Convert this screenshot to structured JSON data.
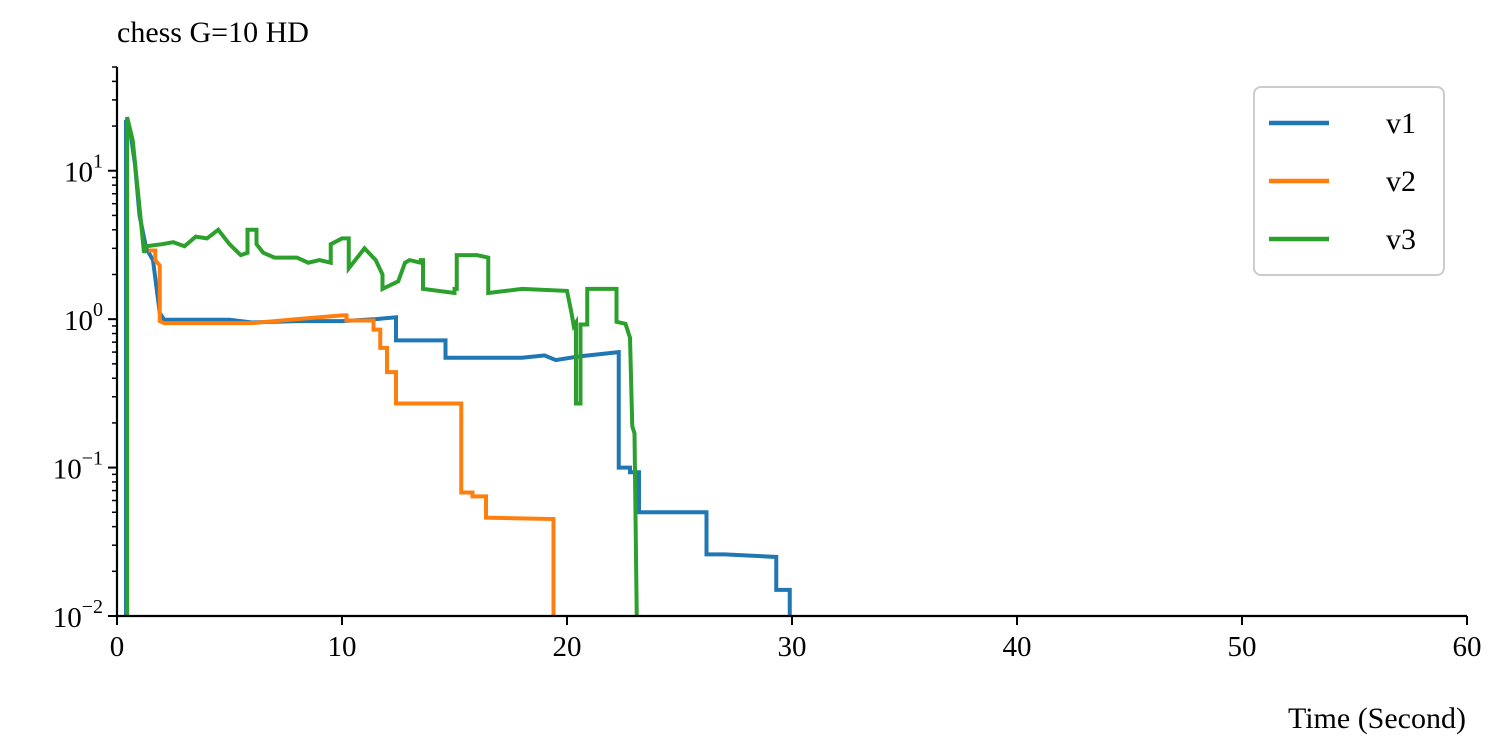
{
  "chart_data": {
    "type": "line",
    "title": "chess G=10 HD",
    "xlabel": "Time (Second)",
    "ylabel": "",
    "xlim": [
      0,
      60
    ],
    "ylim": [
      0.01,
      50
    ],
    "yscale": "log",
    "xticks": [
      0,
      10,
      20,
      30,
      40,
      50,
      60
    ],
    "xtick_labels": [
      "0",
      "10",
      "20",
      "30",
      "40",
      "50",
      "60"
    ],
    "yticks": [
      0.01,
      0.1,
      1,
      10
    ],
    "ytick_labels": [
      {
        "base": "10",
        "exp": "−2"
      },
      {
        "base": "10",
        "exp": "−1"
      },
      {
        "base": "10",
        "exp": "0"
      },
      {
        "base": "10",
        "exp": "1"
      }
    ],
    "legend_position": "top-right",
    "grid": false,
    "series": [
      {
        "name": "v1",
        "color": "#1f77b4",
        "step": true,
        "points": [
          [
            0.4,
            0.01
          ],
          [
            0.4,
            22
          ],
          [
            0.6,
            18
          ],
          [
            0.8,
            11
          ],
          [
            1.0,
            5
          ],
          [
            1.3,
            3.0
          ],
          [
            1.6,
            2.5
          ],
          [
            1.9,
            1.1
          ],
          [
            2.1,
            0.99
          ],
          [
            5.0,
            0.99
          ],
          [
            6.0,
            0.95
          ],
          [
            8.0,
            0.97
          ],
          [
            10.0,
            0.97
          ],
          [
            11.5,
            1.0
          ],
          [
            12.4,
            1.03
          ],
          [
            12.4,
            0.72
          ],
          [
            14.6,
            0.72
          ],
          [
            14.6,
            0.55
          ],
          [
            18.0,
            0.55
          ],
          [
            19.0,
            0.57
          ],
          [
            19.5,
            0.53
          ],
          [
            20.5,
            0.56
          ],
          [
            22.3,
            0.6
          ],
          [
            22.3,
            0.1
          ],
          [
            22.8,
            0.1
          ],
          [
            22.8,
            0.093
          ],
          [
            23.2,
            0.093
          ],
          [
            23.2,
            0.05
          ],
          [
            26.2,
            0.05
          ],
          [
            26.2,
            0.026
          ],
          [
            27.0,
            0.026
          ],
          [
            29.3,
            0.025
          ],
          [
            29.3,
            0.015
          ],
          [
            29.9,
            0.015
          ],
          [
            29.9,
            0.01
          ]
        ]
      },
      {
        "name": "v2",
        "color": "#ff7f0e",
        "step": true,
        "points": [
          [
            1.4,
            2.9
          ],
          [
            1.7,
            2.9
          ],
          [
            1.7,
            2.5
          ],
          [
            1.9,
            2.3
          ],
          [
            1.9,
            0.97
          ],
          [
            2.1,
            0.94
          ],
          [
            6.0,
            0.94
          ],
          [
            8.0,
            1.0
          ],
          [
            10.0,
            1.06
          ],
          [
            10.2,
            1.06
          ],
          [
            10.2,
            0.98
          ],
          [
            11.4,
            0.98
          ],
          [
            11.4,
            0.85
          ],
          [
            11.7,
            0.85
          ],
          [
            11.7,
            0.64
          ],
          [
            12.0,
            0.64
          ],
          [
            12.0,
            0.44
          ],
          [
            12.4,
            0.44
          ],
          [
            12.4,
            0.27
          ],
          [
            15.3,
            0.27
          ],
          [
            15.3,
            0.068
          ],
          [
            15.8,
            0.068
          ],
          [
            15.8,
            0.064
          ],
          [
            16.4,
            0.064
          ],
          [
            16.4,
            0.046
          ],
          [
            19.4,
            0.045
          ],
          [
            19.4,
            0.01
          ]
        ]
      },
      {
        "name": "v3",
        "color": "#2ca02c",
        "step": true,
        "points": [
          [
            0.45,
            0.01
          ],
          [
            0.45,
            23
          ],
          [
            0.7,
            16
          ],
          [
            0.9,
            8
          ],
          [
            1.1,
            4
          ],
          [
            1.2,
            2.8
          ],
          [
            1.3,
            3.1
          ],
          [
            2.0,
            3.2
          ],
          [
            2.5,
            3.3
          ],
          [
            3.0,
            3.1
          ],
          [
            3.5,
            3.6
          ],
          [
            4.0,
            3.5
          ],
          [
            4.5,
            4.0
          ],
          [
            5.0,
            3.2
          ],
          [
            5.5,
            2.7
          ],
          [
            5.8,
            2.8
          ],
          [
            5.8,
            4.0
          ],
          [
            6.2,
            4.0
          ],
          [
            6.2,
            3.2
          ],
          [
            6.5,
            2.8
          ],
          [
            7.0,
            2.6
          ],
          [
            8.0,
            2.6
          ],
          [
            8.5,
            2.4
          ],
          [
            9.0,
            2.5
          ],
          [
            9.5,
            2.4
          ],
          [
            9.5,
            3.2
          ],
          [
            10.0,
            3.5
          ],
          [
            10.3,
            3.5
          ],
          [
            10.3,
            2.2
          ],
          [
            11.0,
            3.0
          ],
          [
            11.5,
            2.5
          ],
          [
            11.8,
            2.0
          ],
          [
            11.8,
            1.6
          ],
          [
            12.5,
            1.8
          ],
          [
            12.8,
            2.4
          ],
          [
            13.0,
            2.5
          ],
          [
            13.5,
            2.4
          ],
          [
            13.5,
            2.5
          ],
          [
            13.6,
            2.5
          ],
          [
            13.6,
            1.6
          ],
          [
            15.0,
            1.5
          ],
          [
            15.0,
            1.6
          ],
          [
            15.1,
            1.6
          ],
          [
            15.1,
            2.7
          ],
          [
            16.0,
            2.7
          ],
          [
            16.5,
            2.6
          ],
          [
            16.5,
            1.5
          ],
          [
            18.0,
            1.6
          ],
          [
            20.0,
            1.55
          ],
          [
            20.2,
            1.1
          ],
          [
            20.3,
            0.9
          ],
          [
            20.4,
            0.95
          ],
          [
            20.4,
            0.27
          ],
          [
            20.6,
            0.27
          ],
          [
            20.6,
            0.92
          ],
          [
            20.9,
            0.92
          ],
          [
            20.9,
            1.6
          ],
          [
            22.2,
            1.6
          ],
          [
            22.2,
            0.96
          ],
          [
            22.6,
            0.93
          ],
          [
            22.8,
            0.75
          ],
          [
            22.9,
            0.19
          ],
          [
            23.0,
            0.17
          ],
          [
            23.1,
            0.01
          ]
        ]
      }
    ]
  }
}
